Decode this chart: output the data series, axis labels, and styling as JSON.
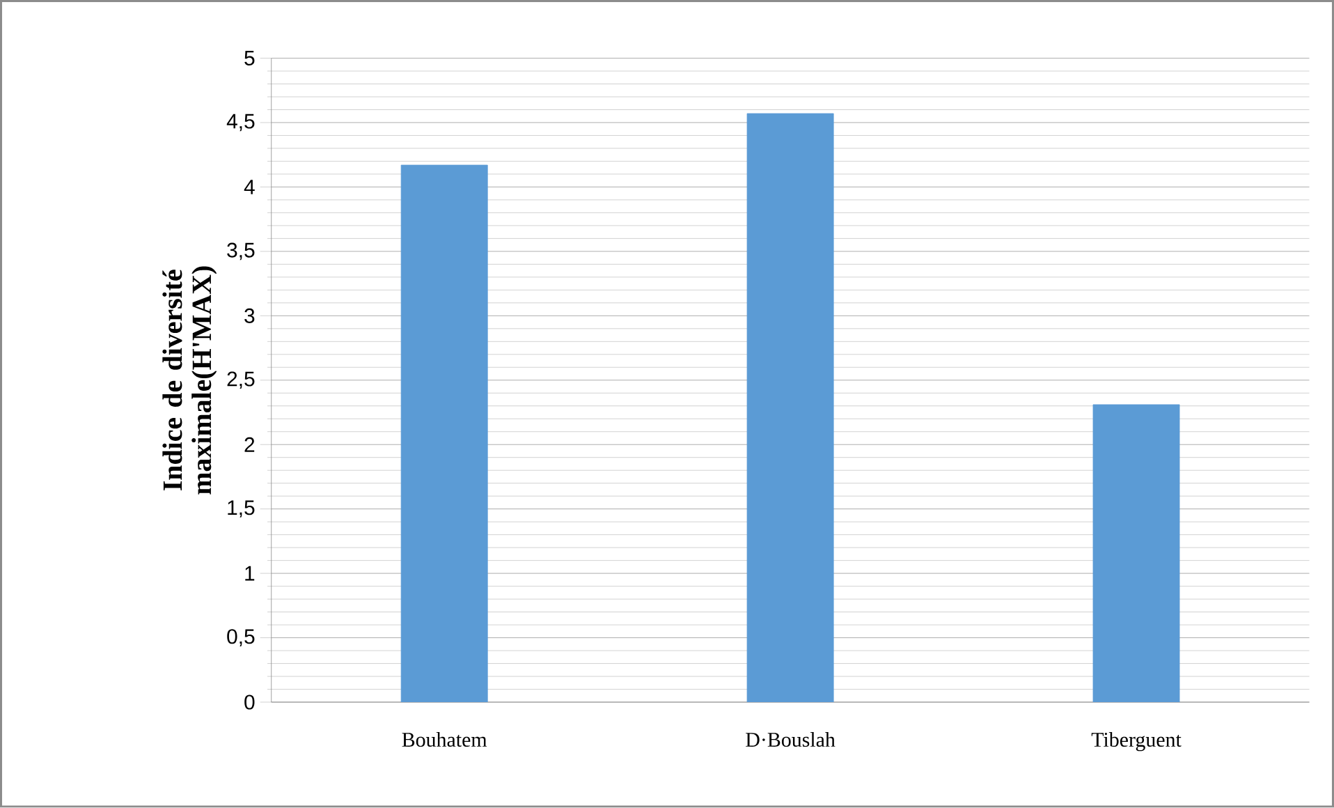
{
  "chart_data": {
    "type": "bar",
    "categories": [
      "Bouhatem",
      "D·Bouslah",
      "Tiberguent"
    ],
    "values": [
      4.17,
      4.57,
      2.31
    ],
    "color": "#5b9bd5",
    "ylabel": "Indice de diversité maximale(H'MAX)",
    "ylim": [
      0,
      5
    ],
    "yticks": [
      {
        "value": 0,
        "label": "0"
      },
      {
        "value": 0.5,
        "label": "0,5"
      },
      {
        "value": 1,
        "label": "1"
      },
      {
        "value": 1.5,
        "label": "1,5"
      },
      {
        "value": 2,
        "label": "2"
      },
      {
        "value": 2.5,
        "label": "2,5"
      },
      {
        "value": 3,
        "label": "3"
      },
      {
        "value": 3.5,
        "label": "3,5"
      },
      {
        "value": 4,
        "label": "4"
      },
      {
        "value": 4.5,
        "label": "4,5"
      },
      {
        "value": 5,
        "label": "5"
      }
    ],
    "grid": true
  }
}
